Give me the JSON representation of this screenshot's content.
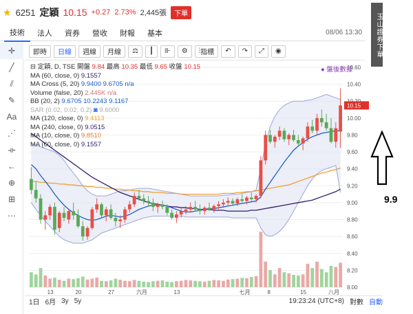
{
  "header": {
    "code": "6251",
    "name": "定穎",
    "price": "10.15",
    "change": "+0.27",
    "change_pct": "2.73%",
    "volume": "2,445張",
    "badge": "下單"
  },
  "tabs": [
    {
      "label": "技術"
    },
    {
      "label": "法人"
    },
    {
      "label": "資券"
    },
    {
      "label": "營收"
    },
    {
      "label": "財報"
    },
    {
      "label": "基本"
    }
  ],
  "datetime": "08/06 13:30",
  "toolbar": {
    "intraday": "即時",
    "daily": "日線",
    "weekly": "週線",
    "monthly": "月線",
    "indicators": "指標"
  },
  "legend": {
    "l0": {
      "label": "定穎, D, TSE",
      "items": [
        "開盤",
        "9.84",
        "最高",
        "10.35",
        "最低",
        "9.65",
        "收盤",
        "10.15"
      ]
    },
    "l1": {
      "label": "MA (60, close, 0)",
      "values": "9.1557"
    },
    "l2": {
      "label": "MA Cross (5, 20)",
      "values": "9.9400 9.6705 n/a"
    },
    "l3": {
      "label": "Volume (false, 20)",
      "values": "2.445K n/a"
    },
    "l4": {
      "label": "BB (20, 2)",
      "values": "9.6705 10.2243 9.1167"
    },
    "l5": {
      "label": "SAR (0.02, 0.02, 0.2)",
      "values": "9.6000"
    },
    "l6": {
      "label": "MA (120, close, 0)",
      "values": "9.4113"
    },
    "l7": {
      "label": "MA (240, close, 0)",
      "values": "9.0515"
    },
    "l8": {
      "label": "MA (10, close, 0)",
      "values": "9.8510"
    },
    "l9": {
      "label": "MA (60, close, 0)",
      "values": "9.1557"
    }
  },
  "after_hours": "盤後數據",
  "yaxis": [
    "10.60",
    "10.40",
    "10.20",
    "10.00",
    "9.80",
    "9.60",
    "9.40",
    "9.20",
    "9.00",
    "8.80",
    "8.60",
    "8.40",
    "8.20",
    "8.00"
  ],
  "price_tag": "10.15",
  "xaxis": [
    "13",
    "20",
    "27",
    "六月",
    "13",
    "七月",
    "8",
    "15",
    "八月"
  ],
  "ranges": [
    "1日",
    "6月",
    "3y",
    "5y"
  ],
  "clock": "19:23:24 (UTC+8)",
  "log_label": "對數",
  "auto_label": "自動",
  "right_label": "玉山證券下單",
  "annotation": "9.9",
  "colors": {
    "up": "#e84f47",
    "down": "#5aa856",
    "ma60": "#2d1e6b",
    "ma120": "#f0a030",
    "ma10": "#1c5ec9",
    "bb": "#9aa6d8"
  },
  "chart_data": {
    "type": "candlestick",
    "ylim": [
      8.0,
      10.6
    ],
    "ohlc": [
      [
        9.28,
        9.42,
        9.1,
        9.15
      ],
      [
        9.15,
        9.25,
        9.0,
        9.05
      ],
      [
        9.05,
        9.1,
        8.75,
        8.8
      ],
      [
        8.8,
        8.9,
        8.68,
        8.85
      ],
      [
        8.85,
        8.98,
        8.8,
        8.95
      ],
      [
        8.95,
        9.0,
        8.62,
        8.68
      ],
      [
        8.7,
        8.9,
        8.65,
        8.88
      ],
      [
        8.88,
        8.95,
        8.78,
        8.82
      ],
      [
        8.8,
        8.92,
        8.75,
        8.9
      ],
      [
        8.9,
        9.0,
        8.8,
        8.85
      ],
      [
        8.85,
        8.92,
        8.7,
        8.72
      ],
      [
        8.72,
        8.78,
        8.55,
        8.6
      ],
      [
        8.6,
        8.72,
        8.56,
        8.7
      ],
      [
        8.7,
        8.95,
        8.68,
        8.92
      ],
      [
        8.92,
        9.05,
        8.88,
        8.98
      ],
      [
        8.98,
        9.0,
        8.82,
        8.85
      ],
      [
        8.85,
        8.95,
        8.78,
        8.92
      ],
      [
        8.92,
        8.98,
        8.8,
        8.82
      ],
      [
        8.82,
        8.88,
        8.72,
        8.78
      ],
      [
        8.78,
        8.85,
        8.7,
        8.8
      ],
      [
        8.8,
        8.95,
        8.76,
        8.92
      ],
      [
        8.92,
        9.02,
        8.88,
        8.98
      ],
      [
        8.98,
        9.12,
        8.95,
        9.08
      ],
      [
        9.08,
        9.15,
        9.02,
        9.05
      ],
      [
        9.05,
        9.1,
        8.98,
        9.02
      ],
      [
        9.02,
        9.08,
        8.95,
        9.0
      ],
      [
        9.0,
        9.05,
        8.9,
        8.95
      ],
      [
        8.95,
        9.0,
        8.88,
        8.98
      ],
      [
        8.98,
        9.02,
        8.92,
        8.95
      ],
      [
        8.95,
        8.98,
        8.85,
        8.88
      ],
      [
        8.88,
        8.92,
        8.8,
        8.82
      ],
      [
        8.82,
        8.9,
        8.76,
        8.86
      ],
      [
        8.86,
        8.95,
        8.82,
        8.9
      ],
      [
        8.9,
        8.96,
        8.86,
        8.92
      ],
      [
        8.92,
        9.0,
        8.88,
        8.95
      ],
      [
        8.95,
        9.02,
        8.9,
        8.92
      ],
      [
        8.92,
        8.98,
        8.86,
        8.9
      ],
      [
        8.9,
        8.96,
        8.86,
        8.94
      ],
      [
        8.94,
        9.0,
        8.9,
        8.92
      ],
      [
        8.92,
        8.98,
        8.88,
        8.96
      ],
      [
        8.96,
        9.02,
        8.92,
        8.98
      ],
      [
        8.98,
        9.04,
        8.94,
        9.0
      ],
      [
        9.0,
        9.06,
        8.96,
        9.02
      ],
      [
        9.02,
        9.05,
        8.96,
        8.99
      ],
      [
        8.99,
        9.06,
        8.96,
        9.04
      ],
      [
        9.04,
        9.1,
        9.0,
        9.02
      ],
      [
        9.02,
        9.08,
        8.98,
        9.06
      ],
      [
        9.06,
        9.12,
        9.02,
        9.04
      ],
      [
        9.04,
        9.1,
        9.0,
        9.08
      ],
      [
        9.08,
        9.55,
        9.05,
        9.5
      ],
      [
        9.5,
        9.85,
        9.45,
        9.8
      ],
      [
        9.8,
        9.86,
        9.7,
        9.72
      ],
      [
        9.72,
        9.8,
        9.65,
        9.78
      ],
      [
        9.78,
        9.9,
        9.74,
        9.85
      ],
      [
        9.85,
        9.88,
        9.72,
        9.75
      ],
      [
        9.75,
        9.82,
        9.68,
        9.8
      ],
      [
        9.8,
        9.86,
        9.72,
        9.74
      ],
      [
        9.74,
        9.8,
        9.66,
        9.7
      ],
      [
        9.7,
        9.78,
        9.62,
        9.76
      ],
      [
        9.76,
        9.95,
        9.72,
        9.9
      ],
      [
        9.9,
        9.98,
        9.82,
        9.85
      ],
      [
        9.85,
        10.05,
        9.8,
        10.0
      ],
      [
        10.0,
        10.1,
        9.9,
        9.95
      ],
      [
        9.95,
        10.05,
        9.85,
        9.88
      ],
      [
        9.88,
        10.0,
        9.7,
        9.72
      ],
      [
        9.72,
        9.95,
        9.65,
        9.88
      ],
      [
        9.84,
        10.35,
        9.65,
        10.15
      ]
    ],
    "volume": [
      70,
      60,
      90,
      55,
      40,
      45,
      35,
      30,
      40,
      38,
      42,
      50,
      36,
      40,
      45,
      30,
      28,
      32,
      40,
      35,
      30,
      28,
      34,
      30,
      26,
      24,
      28,
      30,
      32,
      26,
      24,
      28,
      30,
      34,
      32,
      30,
      28,
      26,
      30,
      34,
      32,
      30,
      36,
      38,
      40,
      44,
      42,
      48,
      52,
      260,
      120,
      80,
      60,
      90,
      70,
      65,
      58,
      55,
      60,
      110,
      90,
      120,
      85,
      70,
      100,
      95,
      115
    ],
    "ma60": [
      9.82,
      9.78,
      9.74,
      9.7,
      9.66,
      9.62,
      9.58,
      9.54,
      9.5,
      9.46,
      9.42,
      9.38,
      9.34,
      9.3,
      9.27,
      9.24,
      9.21,
      9.18,
      9.15,
      9.12,
      9.1,
      9.08,
      9.06,
      9.04,
      9.02,
      9.0,
      8.99,
      8.98,
      8.97,
      8.96,
      8.95,
      8.95,
      8.94,
      8.94,
      8.93,
      8.93,
      8.92,
      8.92,
      8.92,
      8.91,
      8.91,
      8.91,
      8.9,
      8.9,
      8.9,
      8.9,
      8.9,
      8.91,
      8.91,
      8.92,
      8.93,
      8.94,
      8.95,
      8.96,
      8.97,
      8.98,
      8.99,
      9.0,
      9.01,
      9.02,
      9.03,
      9.05,
      9.07,
      9.09,
      9.11,
      9.13,
      9.16
    ],
    "ma120": [
      9.25,
      9.25,
      9.24,
      9.24,
      9.23,
      9.23,
      9.22,
      9.22,
      9.21,
      9.21,
      9.2,
      9.2,
      9.19,
      9.19,
      9.18,
      9.18,
      9.17,
      9.17,
      9.16,
      9.16,
      9.15,
      9.15,
      9.14,
      9.14,
      9.13,
      9.13,
      9.12,
      9.12,
      9.12,
      9.11,
      9.11,
      9.11,
      9.1,
      9.1,
      9.1,
      9.1,
      9.1,
      9.1,
      9.1,
      9.1,
      9.1,
      9.11,
      9.11,
      9.11,
      9.12,
      9.12,
      9.13,
      9.13,
      9.14,
      9.15,
      9.16,
      9.17,
      9.18,
      9.19,
      9.2,
      9.21,
      9.23,
      9.25,
      9.27,
      9.29,
      9.31,
      9.33,
      9.35,
      9.36,
      9.38,
      9.39,
      9.41
    ],
    "ma10": [
      9.45,
      9.4,
      9.32,
      9.25,
      9.18,
      9.1,
      9.03,
      8.97,
      8.92,
      8.88,
      8.85,
      8.82,
      8.8,
      8.79,
      8.8,
      8.82,
      8.84,
      8.85,
      8.84,
      8.83,
      8.84,
      8.86,
      8.89,
      8.92,
      8.94,
      8.96,
      8.97,
      8.97,
      8.97,
      8.96,
      8.94,
      8.92,
      8.9,
      8.89,
      8.89,
      8.9,
      8.91,
      8.92,
      8.93,
      8.93,
      8.94,
      8.95,
      8.96,
      8.97,
      8.98,
      8.99,
      9.0,
      9.01,
      9.02,
      9.07,
      9.16,
      9.24,
      9.32,
      9.4,
      9.48,
      9.55,
      9.62,
      9.67,
      9.71,
      9.75,
      9.78,
      9.8,
      9.82,
      9.83,
      9.84,
      9.85,
      9.85
    ],
    "bb_upper": [
      9.7,
      9.68,
      9.66,
      9.64,
      9.62,
      9.6,
      9.56,
      9.5,
      9.42,
      9.35,
      9.28,
      9.2,
      9.14,
      9.1,
      9.08,
      9.08,
      9.08,
      9.1,
      9.12,
      9.14,
      9.14,
      9.15,
      9.16,
      9.17,
      9.17,
      9.17,
      9.16,
      9.15,
      9.14,
      9.13,
      9.12,
      9.11,
      9.1,
      9.09,
      9.08,
      9.08,
      9.08,
      9.08,
      9.08,
      9.08,
      9.08,
      9.09,
      9.09,
      9.1,
      9.1,
      9.11,
      9.12,
      9.13,
      9.15,
      9.4,
      9.7,
      9.9,
      10.02,
      10.1,
      10.15,
      10.18,
      10.2,
      10.2,
      10.2,
      10.21,
      10.22,
      10.24,
      10.26,
      10.28,
      10.26,
      10.24,
      10.22
    ],
    "bb_lower": [
      9.0,
      8.92,
      8.85,
      8.78,
      8.72,
      8.66,
      8.6,
      8.56,
      8.54,
      8.52,
      8.52,
      8.52,
      8.54,
      8.56,
      8.6,
      8.64,
      8.66,
      8.68,
      8.7,
      8.72,
      8.74,
      8.76,
      8.78,
      8.8,
      8.82,
      8.83,
      8.84,
      8.84,
      8.84,
      8.84,
      8.84,
      8.84,
      8.84,
      8.83,
      8.83,
      8.83,
      8.83,
      8.83,
      8.83,
      8.83,
      8.83,
      8.83,
      8.83,
      8.82,
      8.82,
      8.82,
      8.82,
      8.82,
      8.82,
      8.7,
      8.62,
      8.6,
      8.62,
      8.66,
      8.72,
      8.8,
      8.9,
      9.0,
      9.1,
      9.2,
      9.28,
      9.34,
      9.38,
      9.4,
      9.42,
      9.44,
      9.12
    ]
  }
}
